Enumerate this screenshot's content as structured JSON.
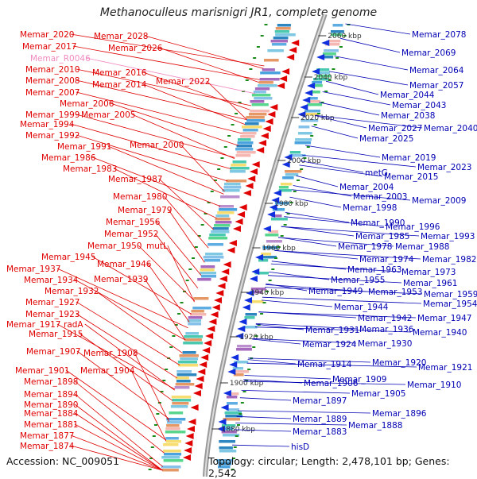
{
  "title": "Methanoculleus marisnigri JR1, complete genome",
  "accession": "Accession: NC_009051",
  "topology": "Topology: circular; Length: 2,478,101 bp; Genes: 2,542",
  "colors": {
    "left": "#e00000",
    "right": "#0000b4",
    "pseudo": "#f08ac0",
    "backbone": "#888888",
    "tick": "#1a8c1a"
  },
  "kbp_ticks": [
    "2060 kbp",
    "2040 kbp",
    "2020 kbp",
    "2000 kbp",
    "1980 kbp",
    "1960 kbp",
    "1940 kbp",
    "1920 kbp",
    "1900 kbp",
    "1880 kbp"
  ],
  "left_labels": [
    "Memar_2020",
    "Memar_2028",
    "Memar_2017",
    "Memar_2026",
    "Memar_R0046",
    "Memar_2010",
    "Memar_2016",
    "Memar_2022",
    "Memar_2008",
    "Memar_2014",
    "Memar_2007",
    "Memar_2006",
    "Memar_1999",
    "Memar_2005",
    "Memar_1994",
    "Memar_1992",
    "Memar_2000",
    "Memar_1991",
    "Memar_1986",
    "Memar_1983",
    "Memar_1987",
    "Memar_1980",
    "Memar_1979",
    "Memar_1956",
    "Memar_1952",
    "Memar_1950",
    "mutL",
    "Memar_1945",
    "Memar_1946",
    "Memar_1937",
    "Memar_1934",
    "Memar_1939",
    "Memar_1932",
    "Memar_1927",
    "Memar_1923",
    "Memar_1917",
    "radA",
    "Memar_1915",
    "Memar_1907",
    "Memar_1908",
    "Memar_1901",
    "Memar_1904",
    "Memar_1898",
    "Memar_1894",
    "Memar_1890",
    "Memar_1884",
    "Memar_1881",
    "Memar_1877",
    "Memar_1874"
  ],
  "right_labels": [
    "Memar_2078",
    "Memar_2069",
    "Memar_2064",
    "Memar_2057",
    "Memar_2044",
    "Memar_2043",
    "Memar_2038",
    "Memar_2040",
    "Memar_2027",
    "Memar_2025",
    "Memar_2019",
    "Memar_2023",
    "metG",
    "Memar_2015",
    "Memar_2004",
    "Memar_2003",
    "Memar_2009",
    "Memar_1998",
    "Memar_1990",
    "Memar_1996",
    "Memar_1985",
    "Memar_1993",
    "Memar_1978",
    "Memar_1988",
    "Memar_1974",
    "Memar_1982",
    "Memar_1963",
    "Memar_1973",
    "Memar_1955",
    "Memar_1961",
    "Memar_1949",
    "Memar_1953",
    "Memar_1959",
    "Memar_1944",
    "Memar_1954",
    "Memar_1942",
    "Memar_1947",
    "Memar_1931",
    "Memar_1936",
    "Memar_1940",
    "Memar_1924",
    "Memar_1930",
    "Memar_1914",
    "Memar_1920",
    "Memar_1921",
    "Memar_1909",
    "Memar_1906",
    "Memar_1910",
    "Memar_1905",
    "Memar_1897",
    "Memar_1896",
    "Memar_1889",
    "Memar_1888",
    "Memar_1883",
    "hisD"
  ]
}
